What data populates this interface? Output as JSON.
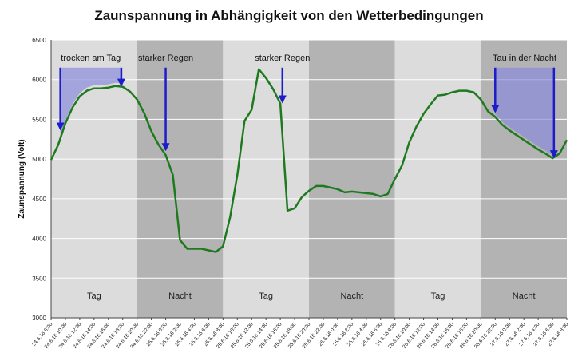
{
  "chart_data": {
    "type": "line",
    "title": "Zaunspannung in Abhängigkeit von den Wetterbedingungen",
    "ylabel": "Zaunspannung (Volt)",
    "xlabel": "",
    "ylim": [
      3000,
      6500
    ],
    "yticks": [
      3000,
      3500,
      4000,
      4500,
      5000,
      5500,
      6000,
      6500
    ],
    "grid": true,
    "x_tick_labels": [
      "24.6.16 8:00",
      "24.6.16 10:00",
      "24.6.16 12:00",
      "24.6.16 14:00",
      "24.6.16 16:00",
      "24.6.16 18:00",
      "24.6.16 20:00",
      "24.6.16 22:00",
      "25.6.16 0:00",
      "25.6.16 2:00",
      "25.6.16 4:00",
      "25.6.16 6:00",
      "25.6.16 8:00",
      "25.6.16 10:00",
      "25.6.16 12:00",
      "25.6.16 14:00",
      "25.6.16 16:00",
      "25.6.16 18:00",
      "25.6.16 20:00",
      "25.6.16 22:00",
      "26.6.16 0:00",
      "26.6.16 2:00",
      "26.6.16 4:00",
      "26.6.16 6:00",
      "26.6.16 8:00",
      "26.6.16 10:00",
      "26.6.16 12:00",
      "26.6.16 14:00",
      "26.6.16 16:00",
      "26.6.16 18:00",
      "26.6.16 20:00",
      "26.6.16 22:00",
      "27.6.16 0:00",
      "27.6.16 2:00",
      "27.6.16 4:00",
      "27.6.16 6:00",
      "27.6.16 8:00"
    ],
    "x_hours": [
      0,
      1,
      2,
      3,
      4,
      5,
      6,
      7,
      8,
      9,
      10,
      11,
      12,
      13,
      14,
      15,
      16,
      17,
      18,
      19,
      20,
      21,
      22,
      23,
      24,
      25,
      26,
      27,
      28,
      29,
      30,
      31,
      32,
      33,
      34,
      35,
      36,
      37,
      38,
      39,
      40,
      41,
      42,
      43,
      44,
      45,
      46,
      47,
      48,
      49,
      50,
      51,
      52,
      53,
      54,
      55,
      56,
      57,
      58,
      59,
      60,
      61,
      62,
      63,
      64,
      65,
      66,
      67,
      68,
      69,
      70,
      71,
      72
    ],
    "series": [
      {
        "color": "#1f7a1f",
        "values": [
          4990,
          5180,
          5450,
          5650,
          5790,
          5860,
          5890,
          5890,
          5900,
          5920,
          5910,
          5850,
          5750,
          5580,
          5350,
          5180,
          5050,
          4800,
          3980,
          3870,
          3870,
          3870,
          3850,
          3830,
          3900,
          4270,
          4800,
          5480,
          5620,
          6130,
          6020,
          5880,
          5700,
          4350,
          4380,
          4520,
          4600,
          4660,
          4660,
          4640,
          4620,
          4580,
          4590,
          4580,
          4570,
          4560,
          4530,
          4560,
          4750,
          4920,
          5210,
          5410,
          5570,
          5690,
          5800,
          5810,
          5840,
          5860,
          5860,
          5840,
          5750,
          5600,
          5530,
          5430,
          5360,
          5300,
          5240,
          5180,
          5120,
          5070,
          5010,
          5070,
          5240
        ]
      }
    ],
    "periods": [
      {
        "label": "Tag",
        "start": 0,
        "end": 12,
        "color": "#dcdcdc"
      },
      {
        "label": "Nacht",
        "start": 12,
        "end": 24,
        "color": "#b3b3b3"
      },
      {
        "label": "Tag",
        "start": 24,
        "end": 36,
        "color": "#dcdcdc"
      },
      {
        "label": "Nacht",
        "start": 36,
        "end": 48,
        "color": "#b3b3b3"
      },
      {
        "label": "Tag",
        "start": 48,
        "end": 60,
        "color": "#dcdcdc"
      },
      {
        "label": "Nacht",
        "start": 60,
        "end": 72,
        "color": "#b3b3b3"
      }
    ],
    "annotations": [
      {
        "text": "trocken am Tag",
        "arrows": [
          {
            "x": 1.3,
            "y_top": 6150,
            "y_tip": 5380
          },
          {
            "x": 9.8,
            "y_top": 6150,
            "y_tip": 5930
          }
        ],
        "region": {
          "x_start": 1.3,
          "x_end": 9.8,
          "y_top": 6150,
          "shade": true
        }
      },
      {
        "text": "starker Regen",
        "arrows": [
          {
            "x": 16.0,
            "y_top": 6150,
            "y_tip": 5120
          }
        ]
      },
      {
        "text": "starker Regen",
        "arrows": [
          {
            "x": 32.3,
            "y_top": 6150,
            "y_tip": 5720
          }
        ]
      },
      {
        "text": "Tau in der Nacht",
        "arrows": [
          {
            "x": 62.0,
            "y_top": 6150,
            "y_tip": 5600
          },
          {
            "x": 70.2,
            "y_top": 6150,
            "y_tip": 5030
          }
        ],
        "region": {
          "x_start": 62.0,
          "x_end": 70.2,
          "y_top": 6150,
          "shade": true
        }
      }
    ],
    "colors": {
      "line": "#1f7a1f",
      "arrow": "#1c1cc8",
      "shade": "#8c8cdc"
    }
  }
}
